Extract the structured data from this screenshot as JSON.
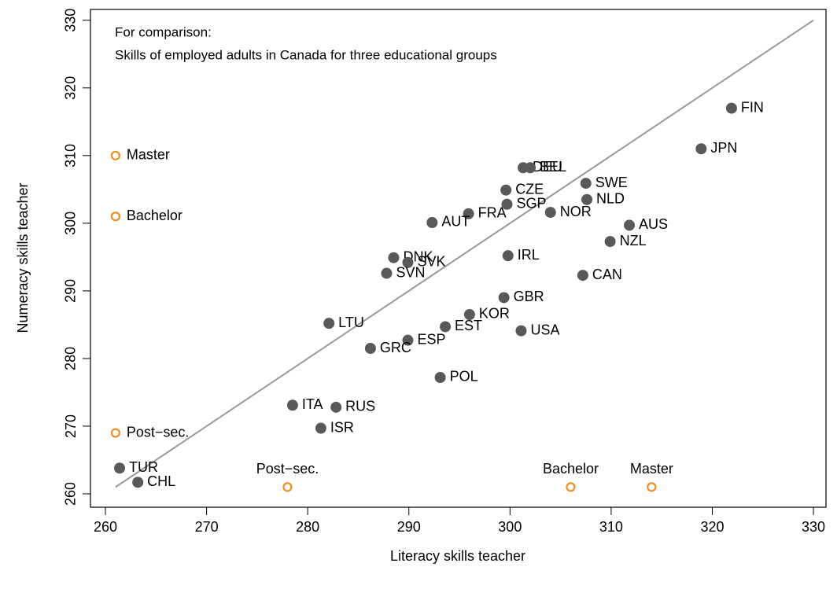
{
  "chart_data": {
    "type": "scatter",
    "x_label": "Literacy skills teacher",
    "y_label": "Numeracy skills teacher",
    "xlim": [
      258.52,
      331.24
    ],
    "ylim": [
      258.02,
      331.6
    ],
    "xticks": [
      260,
      270,
      280,
      290,
      300,
      310,
      320,
      330
    ],
    "yticks": [
      260,
      270,
      280,
      290,
      300,
      310,
      320,
      330
    ],
    "series": [
      {
        "color": "#595959",
        "labels": [
          "FIN",
          "JPN",
          "DEU",
          "BEL",
          "CZE",
          "SWE",
          "NLD",
          "SGP",
          "FRA",
          "NOR",
          "AUT",
          "AUS",
          "NZL",
          "IRL",
          "DNK",
          "SVK",
          "SVN",
          "CAN",
          "GBR",
          "KOR",
          "LTU",
          "EST",
          "USA",
          "ESP",
          "GRC",
          "POL",
          "ITA",
          "RUS",
          "ISR",
          "TUR",
          "CHL"
        ],
        "x": [
          321.9,
          318.9,
          301.3,
          302.0,
          299.6,
          307.5,
          307.6,
          299.7,
          295.9,
          304.0,
          292.3,
          311.8,
          309.9,
          299.8,
          288.5,
          289.9,
          287.8,
          307.2,
          299.4,
          296.0,
          282.1,
          293.6,
          301.1,
          289.9,
          286.2,
          293.1,
          278.5,
          282.8,
          281.3,
          261.4,
          263.2
        ],
        "values": [
          317.0,
          311.0,
          308.2,
          308.2,
          304.9,
          305.9,
          303.5,
          302.8,
          301.4,
          301.6,
          300.1,
          299.7,
          297.3,
          295.2,
          294.9,
          294.2,
          292.6,
          292.3,
          289.0,
          286.5,
          285.2,
          284.7,
          284.1,
          282.7,
          281.5,
          277.2,
          273.1,
          272.8,
          269.7,
          263.8,
          261.7
        ]
      }
    ],
    "reference_line": {
      "x": [
        261,
        330
      ],
      "y": [
        261,
        330
      ],
      "color": "#999999"
    },
    "comparison": {
      "color": "#F28C1F",
      "annotations": [
        "For comparison:",
        "Skills of employed adults in Canada for three educational groups"
      ],
      "numeracy": {
        "labels": [
          "Master",
          "Bachelor",
          "Post−sec."
        ],
        "values": [
          310,
          301,
          269
        ],
        "x": 261
      },
      "literacy": {
        "labels": [
          "Post−sec.",
          "Bachelor",
          "Master"
        ],
        "x": [
          278,
          306,
          314
        ],
        "y": 261
      }
    }
  }
}
